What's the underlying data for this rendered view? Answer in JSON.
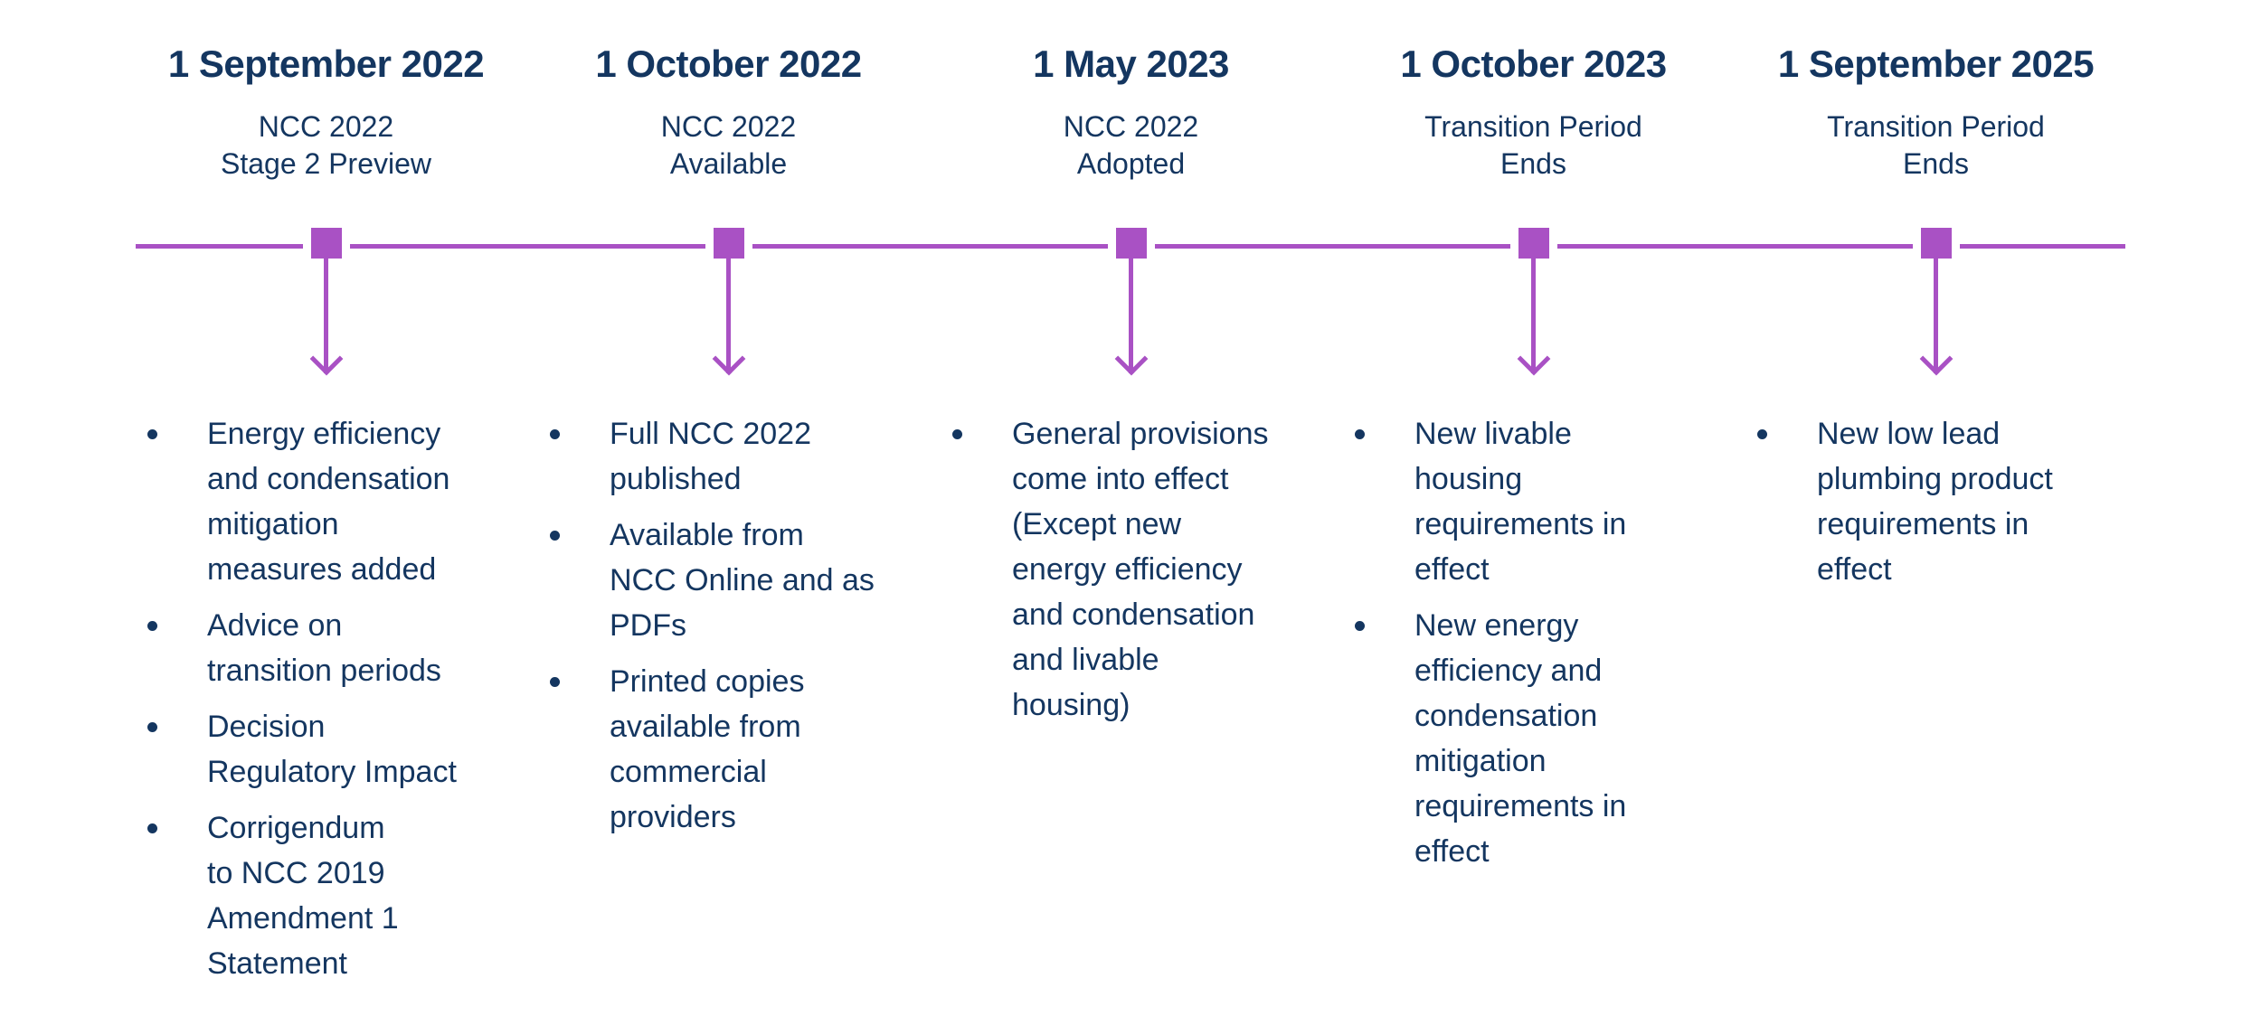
{
  "colors": {
    "accent_purple": "#A951C4",
    "text_navy": "#143660",
    "background": "#ffffff"
  },
  "timeline": {
    "milestones": [
      {
        "date": "1 September 2022",
        "title": "NCC 2022\nStage 2 Preview",
        "bullets": [
          "Energy efficiency\nand condensation\nmitigation\nmeasures added",
          "Advice on\ntransition periods",
          "Decision\nRegulatory Impact",
          "Corrigendum\nto NCC 2019\nAmendment 1\nStatement"
        ]
      },
      {
        "date": "1 October 2022",
        "title": "NCC 2022\nAvailable",
        "bullets": [
          "Full NCC 2022\npublished",
          "Available from\nNCC Online and as\nPDFs",
          "Printed copies\navailable from\ncommercial\nproviders"
        ]
      },
      {
        "date": "1 May 2023",
        "title": "NCC 2022\nAdopted",
        "bullets": [
          "General provisions\ncome into effect\n(Except new\nenergy efficiency\nand condensation\nand livable\nhousing)"
        ]
      },
      {
        "date": "1 October 2023",
        "title": "Transition Period\nEnds",
        "bullets": [
          "New livable\nhousing\nrequirements in\neffect",
          "New energy\nefficiency and\ncondensation\nmitigation\nrequirements in\neffect"
        ]
      },
      {
        "date": "1 September 2025",
        "title": "Transition Period\nEnds",
        "bullets": [
          "New low lead\nplumbing product\nrequirements in\neffect"
        ]
      }
    ]
  }
}
